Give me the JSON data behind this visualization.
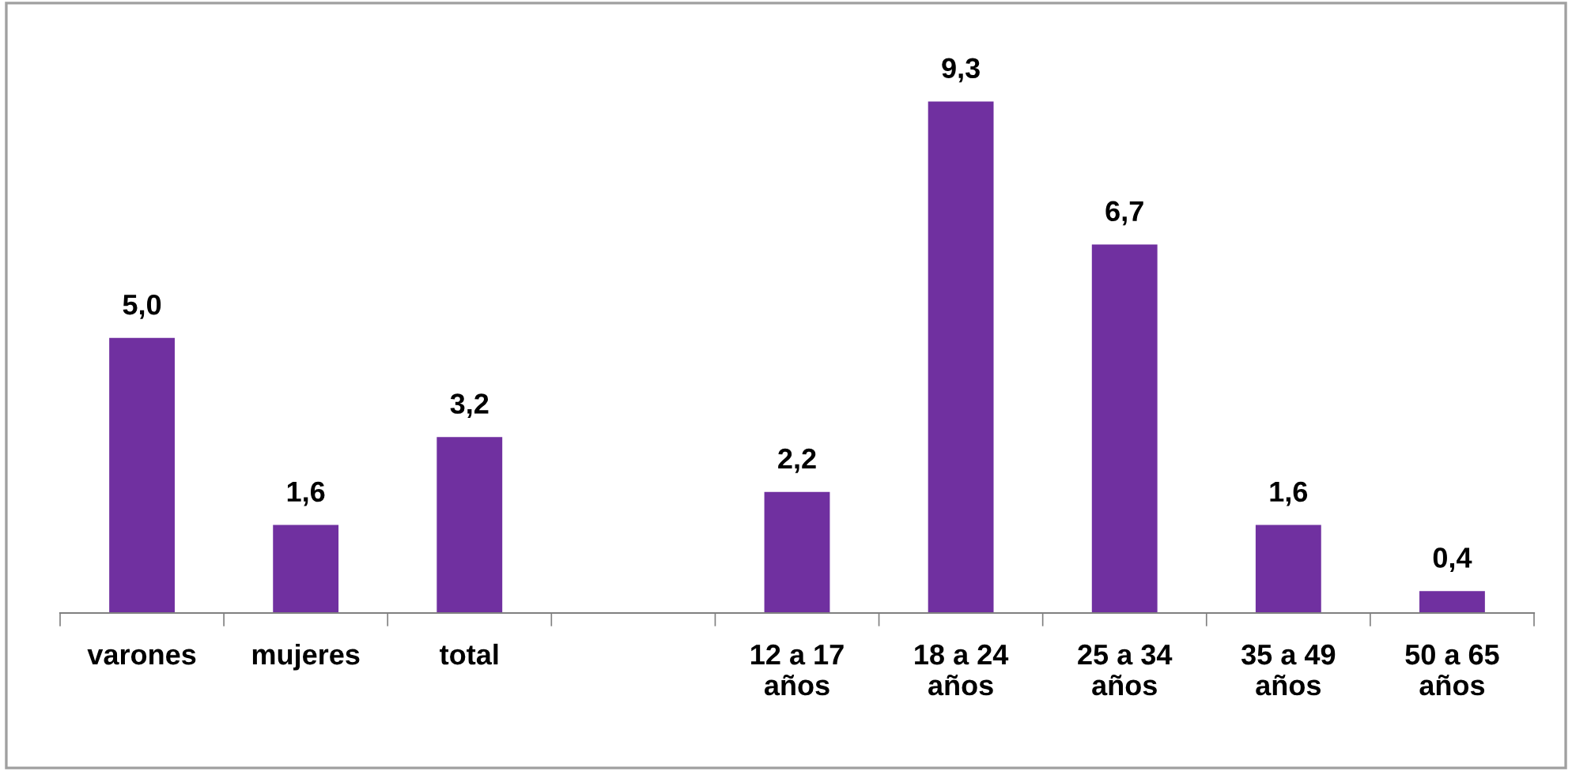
{
  "chart_data": {
    "type": "bar",
    "categories": [
      "varones",
      "mujeres",
      "total",
      null,
      "12 a 17\naños",
      "18 a 24\naños",
      "25 a 34\naños",
      "35 a 49\naños",
      "50 a 65\naños"
    ],
    "values": [
      5.0,
      1.6,
      3.2,
      null,
      2.2,
      9.3,
      6.7,
      1.6,
      0.4
    ],
    "value_labels": [
      "5,0",
      "1,6",
      "3,2",
      null,
      "2,2",
      "9,3",
      "6,7",
      "1,6",
      "0,4"
    ],
    "color": "#7030a0",
    "grid": false,
    "legend": false
  }
}
